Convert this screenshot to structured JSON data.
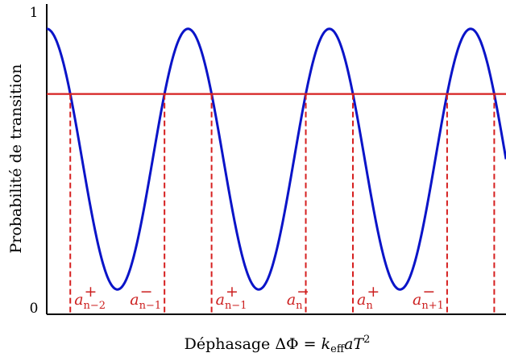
{
  "chart_data": {
    "type": "line",
    "title": "",
    "xlabel": "Déphasage ΔΦ = k_eff a T²",
    "xlabel_parts": {
      "prefix": "Déphasage ΔΦ = ",
      "k": "k",
      "k_sub": "eff",
      "a": "a",
      "T": "T",
      "T_sup": "2"
    },
    "ylabel": "Probabilité de transition",
    "ylim": [
      0,
      1
    ],
    "y_ticks": [
      "0",
      "1"
    ],
    "grid": false,
    "series": [
      {
        "color": "#0a14c8",
        "curve": {
          "form": "cosine",
          "offset": 0.5,
          "amplitude": 0.42,
          "periods_shown": 3.25,
          "start_phase_fraction": 0.0
        }
      }
    ],
    "threshold": {
      "y": 0.71,
      "color": "#d62020"
    },
    "crossings": [
      {
        "label": "a",
        "sup": "+",
        "sub": "n−2"
      },
      {
        "label": "a",
        "sup": "−",
        "sub": "n−1"
      },
      {
        "label": "a",
        "sup": "+",
        "sub": "n−1"
      },
      {
        "label": "a",
        "sup": "−",
        "sub": "n"
      },
      {
        "label": "a",
        "sup": "+",
        "sub": "n"
      },
      {
        "label": "a",
        "sup": "−",
        "sub": "n+1"
      }
    ]
  }
}
